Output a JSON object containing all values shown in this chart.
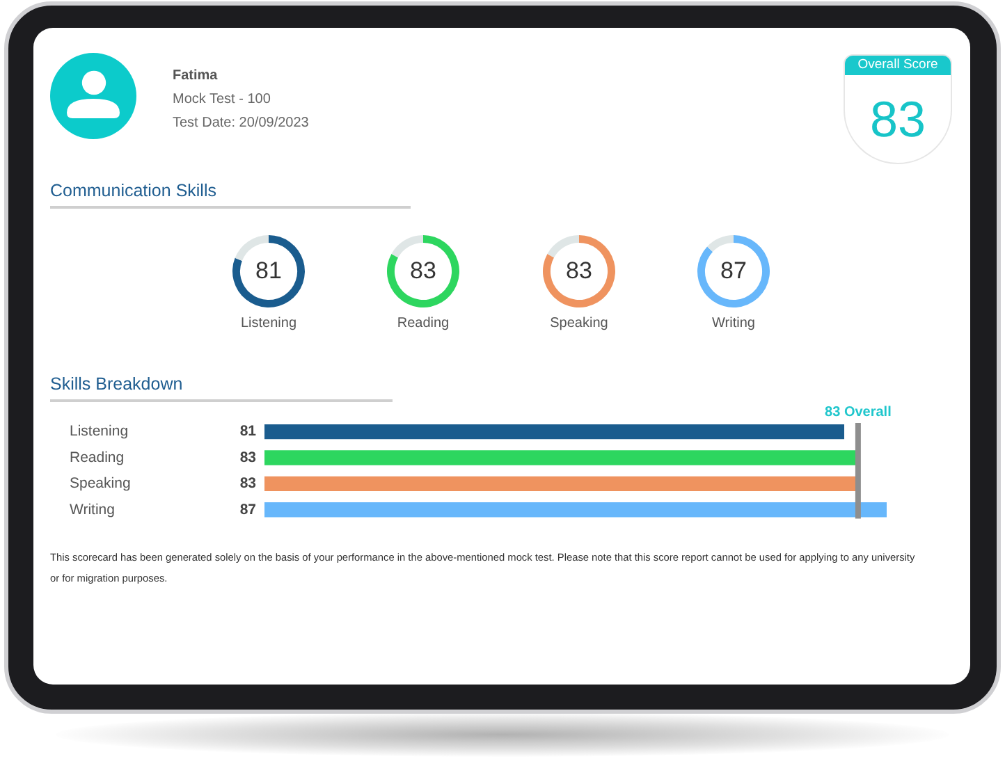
{
  "chart_data": [
    {
      "type": "other",
      "title": "Fatima",
      "annotations": [
        "Mock Test - 100",
        "Test Date: 20/09/2023"
      ]
    },
    {
      "type": "other",
      "title": "Overall Score",
      "annotations": [
        "83"
      ]
    },
    {
      "type": "other",
      "title": "Communication Skills"
    },
    {
      "type": "donut",
      "categories": [
        "Listening",
        null
      ],
      "values": [
        81,
        19
      ],
      "colors": [
        "#1a5c8e",
        "#dfe6e6"
      ],
      "value_labels": [
        "81",
        null
      ]
    },
    {
      "type": "donut",
      "categories": [
        "Reading",
        null
      ],
      "values": [
        83,
        17
      ],
      "colors": [
        "#2dd65f",
        "#dfe6e6"
      ],
      "value_labels": [
        "83",
        null
      ]
    },
    {
      "type": "donut",
      "categories": [
        "Speaking",
        null
      ],
      "values": [
        83,
        17
      ],
      "colors": [
        "#ef935f",
        "#dfe6e6"
      ],
      "value_labels": [
        "83",
        null
      ]
    },
    {
      "type": "donut",
      "categories": [
        "Writing",
        null
      ],
      "values": [
        87,
        13
      ],
      "colors": [
        "#67b7fb",
        "#dfe6e6"
      ],
      "value_labels": [
        "87",
        null
      ]
    },
    {
      "type": "bar",
      "orientation": "horizontal",
      "title": "Skills Breakdown",
      "categories": [
        "Listening",
        "Reading",
        "Speaking",
        "Writing"
      ],
      "values": [
        81,
        83,
        83,
        87
      ],
      "colors": [
        "#1a5c8e",
        "#2dd65f",
        "#ef935f",
        "#67b7fb"
      ],
      "xlim": [
        0,
        87
      ],
      "data_labels": true,
      "tick_labels": "y",
      "ref_lines": [
        {
          "axis": "x",
          "value": 83,
          "label": "83 Overall",
          "color": "#8e8e8e"
        }
      ],
      "annotations": [
        "This scorecard has been generated solely on the basis of your performance in the above-mentioned mock test. Please note that this score report cannot be used for applying to any university or for migration purposes."
      ]
    }
  ]
}
